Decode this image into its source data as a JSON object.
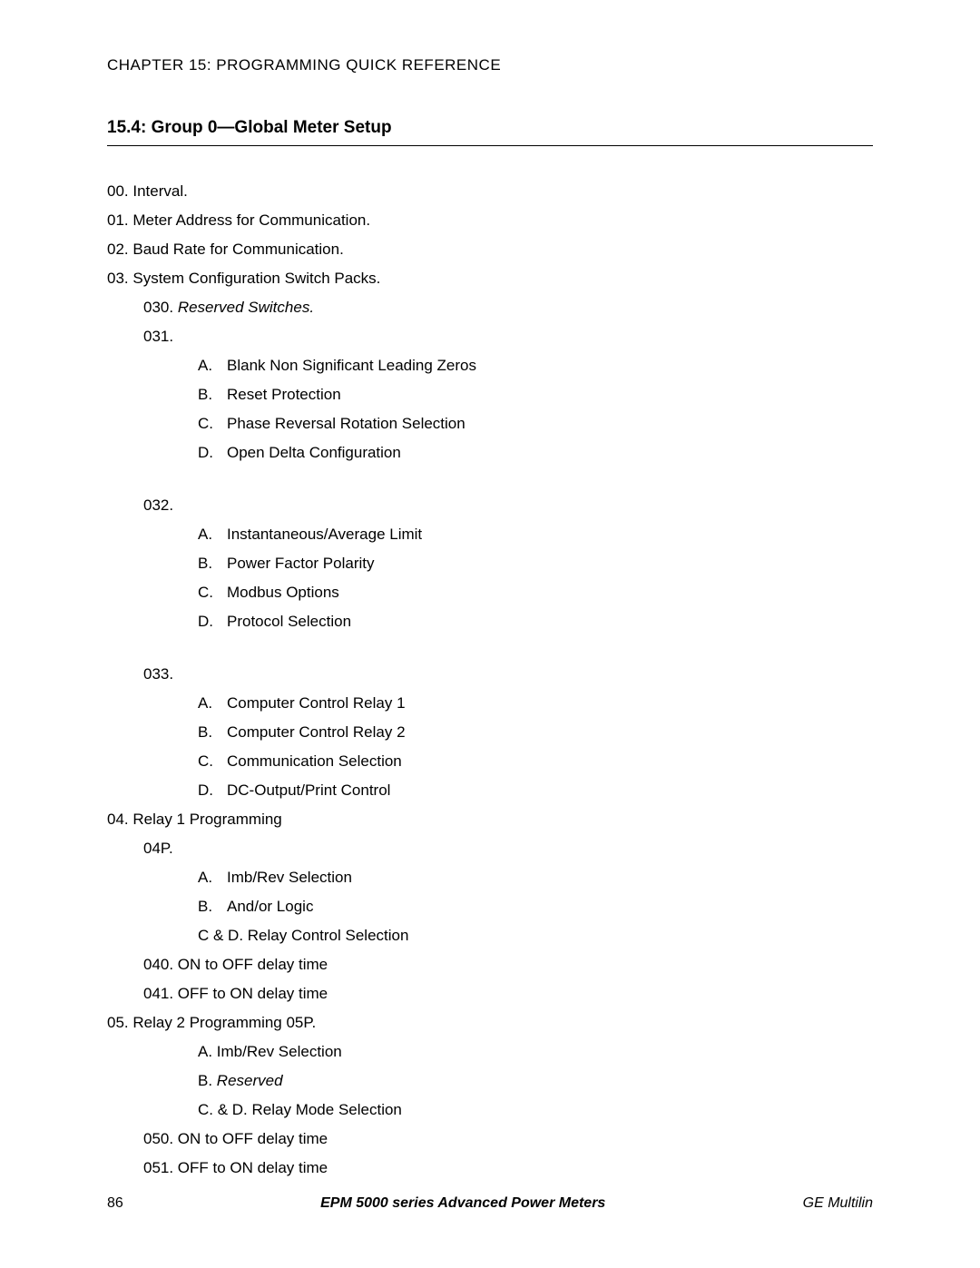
{
  "chapter_header": "CHAPTER 15: PROGRAMMING QUICK REFERENCE",
  "section_title": "15.4: Group 0—Global Meter Setup",
  "items": {
    "i00": "00. Interval.",
    "i01": "01. Meter Address for Communication.",
    "i02": "02. Baud Rate for Communication.",
    "i03": "03. System Configuration Switch Packs.",
    "i030_prefix": "030. ",
    "i030_italic": "Reserved Switches.",
    "i031": "031.",
    "list031": {
      "A": "Blank Non Significant Leading Zeros",
      "B": "Reset Protection",
      "C": "Phase Reversal Rotation Selection",
      "D": "Open Delta Configuration"
    },
    "i032": "032.",
    "list032": {
      "A": "Instantaneous/Average Limit",
      "B": "Power Factor Polarity",
      "C": "Modbus Options",
      "D": "Protocol Selection"
    },
    "i033": "033.",
    "list033": {
      "A": "Computer Control Relay 1",
      "B": "Computer Control Relay 2",
      "C": "Communication Selection",
      "D": "DC-Output/Print Control"
    },
    "i04": "04. Relay 1 Programming",
    "i04P": "04P.",
    "list04P": {
      "A": "Imb/Rev Selection",
      "B": "And/or Logic",
      "CD": "C & D. Relay Control Selection"
    },
    "i040": "040. ON to OFF delay time",
    "i041": "041. OFF to ON delay time",
    "i05": "05. Relay 2 Programming 05P.",
    "list05P": {
      "A": "A. Imb/Rev Selection",
      "B_prefix": "B. ",
      "B_italic": "Reserved",
      "CD": "C. & D. Relay Mode Selection"
    },
    "i050": "050. ON to OFF delay time",
    "i051": "051. OFF to ON delay time"
  },
  "footer": {
    "page": "86",
    "title": "EPM 5000 series Advanced Power Meters",
    "brand": "GE Multilin"
  }
}
